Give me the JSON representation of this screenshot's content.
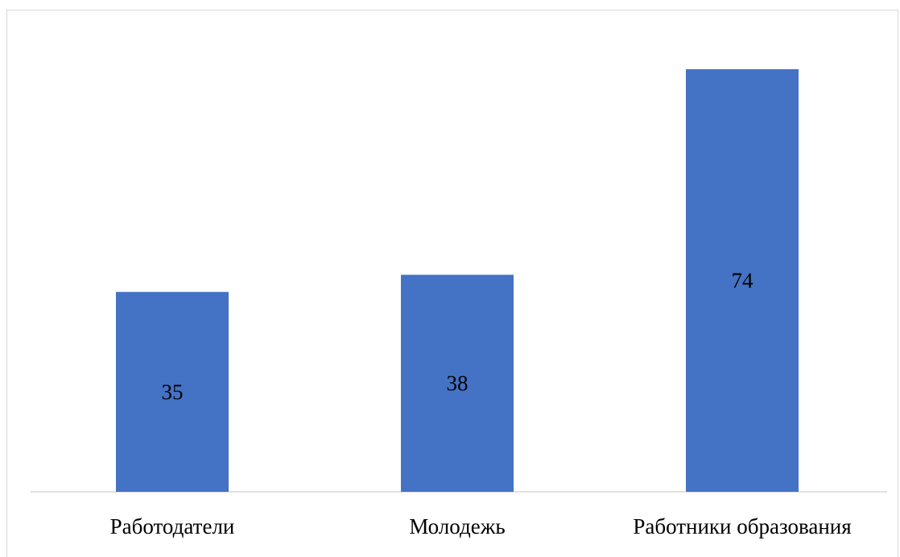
{
  "chart_data": {
    "type": "bar",
    "categories": [
      "Работодатели",
      "Молодежь",
      "Работники образования"
    ],
    "values": [
      35,
      38,
      74
    ],
    "title": "",
    "xlabel": "",
    "ylabel": "",
    "ylim": [
      0,
      80
    ],
    "grid": false,
    "legend": "none",
    "data_labels": [
      "35",
      "38",
      "74"
    ],
    "bar_color": "#4472C4",
    "axis_color": "#d9d9d9"
  }
}
